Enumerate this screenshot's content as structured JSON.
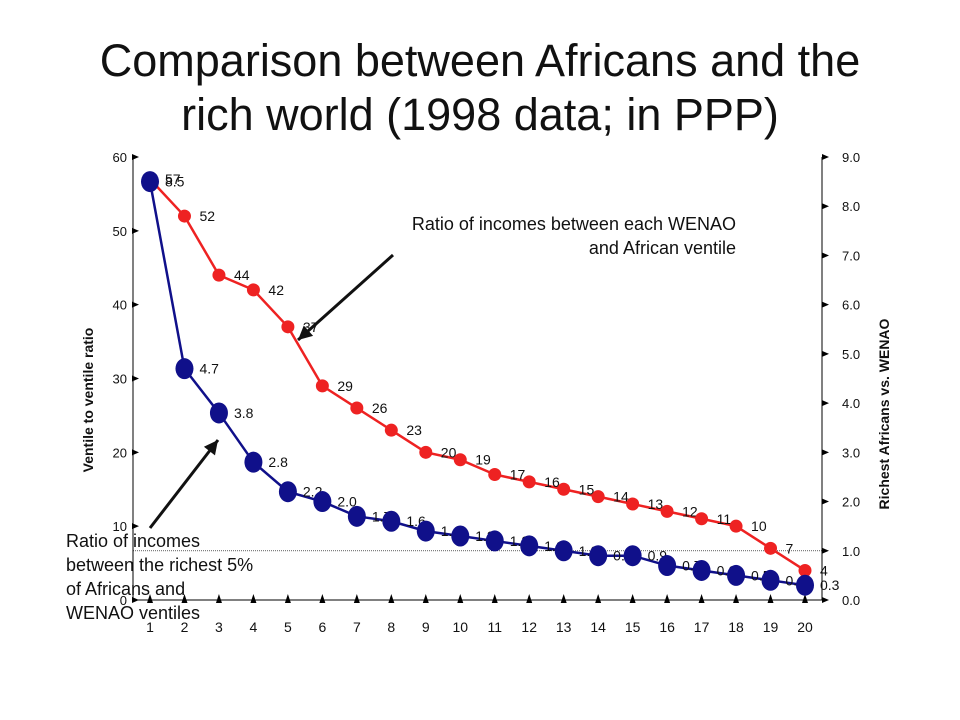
{
  "title_line1": "Comparison between Africans and the",
  "title_line2": "rich world (1998 data; in PPP)",
  "annotation_red": [
    "Ratio of incomes between each WENAO",
    "and African ventile"
  ],
  "annotation_blue": [
    "Ratio of incomes",
    "between the richest 5%",
    "of Africans and",
    "WENAO ventiles"
  ],
  "colors": {
    "red": "#ee2222",
    "blue": "#10108a",
    "axis": "#000000"
  },
  "chart_data": {
    "type": "line",
    "x": [
      1,
      2,
      3,
      4,
      5,
      6,
      7,
      8,
      9,
      10,
      11,
      12,
      13,
      14,
      15,
      16,
      17,
      18,
      19,
      20
    ],
    "x_tick_labels": [
      "1",
      "2",
      "3",
      "4",
      "5",
      "6",
      "7",
      "8",
      "9",
      "10",
      "11",
      "12",
      "13",
      "14",
      "15",
      "16",
      "17",
      "18",
      "19",
      "20"
    ],
    "ylabel_left": "Ventile to ventile ratio",
    "ylabel_right": "Richest Africans vs. WENAO",
    "ylim_left": [
      0,
      60
    ],
    "ylim_right": [
      0,
      9
    ],
    "left_ticks": [
      "0",
      "10",
      "20",
      "30",
      "40",
      "50",
      "60"
    ],
    "right_ticks": [
      "0.0",
      "1.0",
      "2.0",
      "3.0",
      "4.0",
      "5.0",
      "6.0",
      "7.0",
      "8.0",
      "9.0"
    ],
    "reference_line_right": 1.0,
    "series": [
      {
        "axis": "left",
        "color": "#ee2222",
        "values": [
          57,
          52,
          44,
          42,
          37,
          29,
          26,
          23,
          20,
          19,
          17,
          16,
          15,
          14,
          13,
          12,
          11,
          10,
          7,
          4
        ],
        "labels": [
          "57",
          "52",
          "44",
          "42",
          "37",
          "29",
          "26",
          "23",
          "20",
          "19",
          "17",
          "16",
          "15",
          "14",
          "13",
          "12",
          "11",
          "10",
          "7",
          "4"
        ]
      },
      {
        "axis": "right",
        "color": "#10108a",
        "values": [
          8.5,
          4.7,
          3.8,
          2.8,
          2.2,
          2.0,
          1.7,
          1.6,
          1.4,
          1.3,
          1.2,
          1.1,
          1.0,
          0.9,
          0.9,
          0.7,
          0.6,
          0.5,
          0.4,
          0.3
        ],
        "labels": [
          "8.5",
          "4.7",
          "3.8",
          "2.8",
          "2.2",
          "2.0",
          "1.7",
          "1.6",
          "1.4",
          "1.3",
          "1.2",
          "1.1",
          "1.0",
          "0.9",
          "0.9",
          "0.7",
          "0.6",
          "0.5",
          "0.4",
          "0.3"
        ]
      }
    ]
  }
}
